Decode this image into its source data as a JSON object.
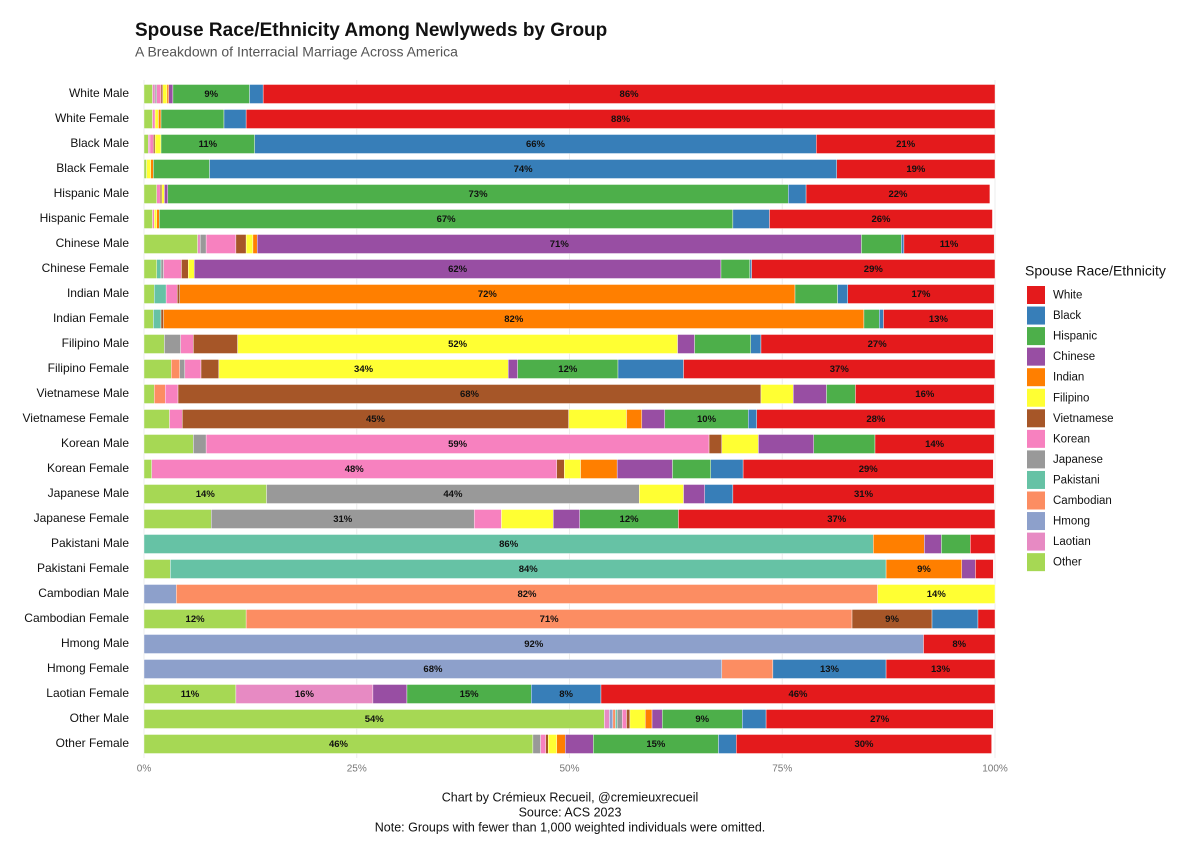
{
  "chart_data": {
    "type": "stacked-bar-horizontal",
    "title": "Spouse Race/Ethnicity Among Newlyweds by Group",
    "subtitle": "A Breakdown of Interracial Marriage Across America",
    "caption": [
      "Chart by Crémieux Recueil, @cremieuxrecueil",
      "Source: ACS 2023",
      "Note: Groups with fewer than 1,000 weighted individuals were omitted."
    ],
    "legend_title": "Spouse Race/Ethnicity",
    "legend": "right",
    "xlim": [
      0,
      100
    ],
    "xticks": [
      {
        "value": 0,
        "label": "0%"
      },
      {
        "value": 25,
        "label": "25%"
      },
      {
        "value": 50,
        "label": "50%"
      },
      {
        "value": 75,
        "label": "75%"
      },
      {
        "value": 100,
        "label": "100%"
      }
    ],
    "categories": [
      "White Male",
      "White Female",
      "Black Male",
      "Black Female",
      "Hispanic Male",
      "Hispanic Female",
      "Chinese Male",
      "Chinese Female",
      "Indian Male",
      "Indian Female",
      "Filipino Male",
      "Filipino Female",
      "Vietnamese Male",
      "Vietnamese Female",
      "Korean Male",
      "Korean Female",
      "Japanese Male",
      "Japanese Female",
      "Pakistani Male",
      "Pakistani Female",
      "Cambodian Male",
      "Cambodian Female",
      "Hmong Male",
      "Hmong Female",
      "Laotian Female",
      "Other Male",
      "Other Female"
    ],
    "series": [
      {
        "name": "White",
        "color": "#e41a1c",
        "values": [
          86,
          88,
          21,
          18.6,
          21.6,
          26.2,
          10.6,
          28.6,
          17.2,
          12.9,
          27.3,
          36.6,
          16.3,
          28,
          14,
          29.4,
          30.7,
          37.2,
          2.9,
          2.1,
          0,
          2,
          8.4,
          12.8,
          46.3,
          26.7,
          30
        ],
        "value_labels": [
          "86%",
          "88%",
          "21%",
          "19%",
          "22%",
          "26%",
          "11%",
          "29%",
          "17%",
          "13%",
          "27%",
          "37%",
          "16%",
          "28%",
          "14%",
          "29%",
          "31%",
          "37%",
          null,
          null,
          null,
          null,
          "8%",
          "13%",
          "46%",
          "27%",
          "30%"
        ]
      },
      {
        "name": "Black",
        "color": "#377eb8",
        "values": [
          1.6,
          2.6,
          66,
          73.7,
          2.1,
          4.3,
          0.3,
          0.2,
          1.2,
          0.5,
          1.2,
          7.7,
          0,
          1,
          0,
          3.8,
          3.3,
          0,
          0,
          0,
          0,
          5.4,
          0,
          13.3,
          8.2,
          2.8,
          2.1
        ],
        "value_labels": [
          null,
          null,
          "66%",
          "74%",
          null,
          null,
          null,
          null,
          null,
          null,
          null,
          null,
          null,
          null,
          null,
          null,
          null,
          null,
          null,
          null,
          null,
          null,
          null,
          "13%",
          "8%",
          null,
          null
        ]
      },
      {
        "name": "Hispanic",
        "color": "#4daf4a",
        "values": [
          9,
          7.4,
          11,
          6.6,
          72.9,
          67.4,
          4.7,
          3.4,
          5,
          1.8,
          6.6,
          11.8,
          3.4,
          9.8,
          7.2,
          4.5,
          0,
          11.6,
          3.4,
          0,
          0,
          0,
          0,
          0,
          14.6,
          9.4,
          14.7
        ],
        "value_labels": [
          "9%",
          null,
          "11%",
          null,
          "73%",
          "67%",
          null,
          null,
          null,
          null,
          null,
          "12%",
          null,
          "10%",
          null,
          null,
          null,
          "12%",
          null,
          null,
          null,
          null,
          null,
          null,
          "15%",
          "9%",
          "15%"
        ]
      },
      {
        "name": "Chinese",
        "color": "#984ea3",
        "values": [
          0.5,
          0,
          0,
          0,
          0.4,
          0,
          71,
          61.9,
          0,
          0,
          2,
          1.1,
          3.9,
          2.7,
          6.5,
          6.5,
          2.5,
          3.1,
          2,
          1.6,
          0,
          0,
          0,
          0,
          4,
          1.2,
          3.3
        ],
        "value_labels": [
          null,
          null,
          null,
          null,
          null,
          null,
          "71%",
          "62%",
          null,
          null,
          null,
          null,
          null,
          null,
          null,
          null,
          null,
          null,
          null,
          null,
          null,
          null,
          null,
          null,
          null,
          null,
          null
        ]
      },
      {
        "name": "Indian",
        "color": "#ff7f00",
        "values": [
          0.2,
          0.3,
          0,
          0.3,
          0,
          0.3,
          0.5,
          0,
          72.3,
          82.3,
          0,
          0,
          0,
          1.8,
          0,
          4.3,
          0,
          0,
          6,
          8.9,
          0,
          0,
          0,
          0,
          0,
          0.8,
          1
        ],
        "value_labels": [
          null,
          null,
          null,
          null,
          null,
          null,
          null,
          null,
          "72%",
          "82%",
          null,
          null,
          null,
          null,
          null,
          null,
          null,
          null,
          null,
          "9%",
          null,
          null,
          null,
          null,
          null,
          null,
          null
        ]
      },
      {
        "name": "Filipino",
        "color": "#ffff33",
        "values": [
          0.5,
          0.4,
          0.7,
          0.5,
          0.3,
          0.3,
          0.8,
          0.7,
          0,
          0,
          51.7,
          34,
          3.8,
          6.8,
          4.3,
          1.9,
          5.2,
          6.1,
          0,
          0,
          13.8,
          0,
          0,
          0,
          0,
          1.8,
          1
        ],
        "value_labels": [
          null,
          null,
          null,
          null,
          null,
          null,
          null,
          null,
          null,
          null,
          "52%",
          "34%",
          null,
          null,
          null,
          null,
          null,
          null,
          null,
          null,
          "14%",
          null,
          null,
          null,
          null,
          null,
          null
        ]
      },
      {
        "name": "Vietnamese",
        "color": "#a65628",
        "values": [
          0.2,
          0,
          0.2,
          0,
          0.2,
          0,
          1.2,
          0.8,
          0.3,
          0.3,
          5.2,
          2.1,
          68.5,
          45.4,
          1.5,
          0.9,
          0,
          0,
          0,
          0,
          0,
          9.4,
          0,
          0,
          0,
          0.4,
          0.3
        ],
        "value_labels": [
          null,
          null,
          null,
          null,
          null,
          null,
          null,
          null,
          null,
          null,
          null,
          null,
          "68%",
          "45%",
          null,
          null,
          null,
          null,
          null,
          null,
          null,
          "9%",
          null,
          null,
          null,
          null,
          null
        ]
      },
      {
        "name": "Korean",
        "color": "#f781bf",
        "values": [
          0.5,
          0.3,
          0.4,
          0,
          0.4,
          0.2,
          3.5,
          2.1,
          1.3,
          0,
          1.5,
          1.9,
          1.5,
          1.5,
          59.1,
          47.6,
          0,
          3.2,
          0,
          0,
          0,
          0,
          0,
          0,
          0,
          0.5,
          0.6
        ],
        "value_labels": [
          null,
          null,
          null,
          null,
          null,
          null,
          null,
          null,
          null,
          null,
          null,
          null,
          null,
          null,
          "59%",
          "48%",
          null,
          null,
          null,
          null,
          null,
          null,
          null,
          null,
          null,
          null,
          null
        ]
      },
      {
        "name": "Japanese",
        "color": "#999999",
        "values": [
          0.2,
          0,
          0,
          0,
          0,
          0,
          0.7,
          0.3,
          0,
          0,
          1.9,
          0.6,
          0,
          0,
          1.5,
          0,
          43.8,
          30.9,
          0,
          0,
          0,
          0,
          0,
          0,
          0,
          0.6,
          0.9
        ],
        "value_labels": [
          null,
          null,
          null,
          null,
          null,
          null,
          null,
          null,
          null,
          null,
          null,
          null,
          null,
          null,
          null,
          null,
          "44%",
          "31%",
          null,
          null,
          null,
          null,
          null,
          null,
          null,
          null,
          null
        ]
      },
      {
        "name": "Pakistani",
        "color": "#66c2a5",
        "values": [
          0,
          0,
          0,
          0,
          0,
          0,
          0,
          0.5,
          1.4,
          0.9,
          0,
          0,
          0,
          0,
          0,
          0,
          0,
          0,
          85.7,
          84.1,
          0,
          0,
          0,
          0,
          0,
          0.2,
          0
        ],
        "value_labels": [
          null,
          null,
          null,
          null,
          null,
          null,
          null,
          null,
          null,
          null,
          null,
          null,
          null,
          null,
          null,
          null,
          null,
          null,
          "86%",
          "84%",
          null,
          null,
          null,
          null,
          null,
          null,
          null
        ]
      },
      {
        "name": "Cambodian",
        "color": "#fc8d62",
        "values": [
          0,
          0,
          0,
          0,
          0,
          0,
          0,
          0,
          0,
          0,
          0,
          1,
          1.3,
          0,
          0,
          0,
          0,
          0,
          0,
          0,
          82.4,
          71.2,
          0,
          6,
          0,
          0.3,
          0
        ],
        "value_labels": [
          null,
          null,
          null,
          null,
          null,
          null,
          null,
          null,
          null,
          null,
          null,
          null,
          null,
          null,
          null,
          null,
          null,
          null,
          null,
          null,
          "82%",
          "71%",
          null,
          null,
          null,
          null,
          null
        ]
      },
      {
        "name": "Hmong",
        "color": "#8da0cb",
        "values": [
          0,
          0,
          0,
          0,
          0,
          0,
          0,
          0,
          0,
          0,
          0,
          0,
          0,
          0,
          0,
          0,
          0,
          0,
          0,
          0,
          3.8,
          0,
          91.6,
          67.9,
          0,
          0.4,
          0
        ],
        "value_labels": [
          null,
          null,
          null,
          null,
          null,
          null,
          null,
          null,
          null,
          null,
          null,
          null,
          null,
          null,
          null,
          null,
          null,
          null,
          null,
          null,
          null,
          null,
          "92%",
          "68%",
          null,
          null,
          null
        ]
      },
      {
        "name": "Laotian",
        "color": "#e78ac3",
        "values": [
          0.3,
          0,
          0.2,
          0,
          0,
          0,
          0.3,
          0,
          0,
          0,
          0,
          0,
          0,
          0,
          0,
          0,
          0,
          0,
          0,
          0,
          0,
          0,
          0,
          0,
          16.1,
          0.6,
          0
        ],
        "value_labels": [
          null,
          null,
          null,
          null,
          null,
          null,
          null,
          null,
          null,
          null,
          null,
          null,
          null,
          null,
          null,
          null,
          null,
          null,
          null,
          null,
          null,
          null,
          null,
          null,
          "16%",
          null,
          null
        ]
      },
      {
        "name": "Other",
        "color": "#a6d854",
        "values": [
          1,
          1,
          0.5,
          0.3,
          1.5,
          1,
          6.3,
          1.5,
          1.2,
          1.1,
          2.4,
          3.2,
          1.2,
          3,
          5.8,
          0.9,
          14.4,
          7.9,
          0,
          3.1,
          0,
          12,
          0,
          0,
          10.8,
          54.1,
          45.7
        ],
        "value_labels": [
          null,
          null,
          null,
          null,
          null,
          null,
          null,
          null,
          null,
          null,
          null,
          null,
          null,
          null,
          null,
          null,
          "14%",
          null,
          null,
          null,
          null,
          "12%",
          null,
          null,
          "11%",
          "54%",
          "46%"
        ]
      }
    ]
  }
}
